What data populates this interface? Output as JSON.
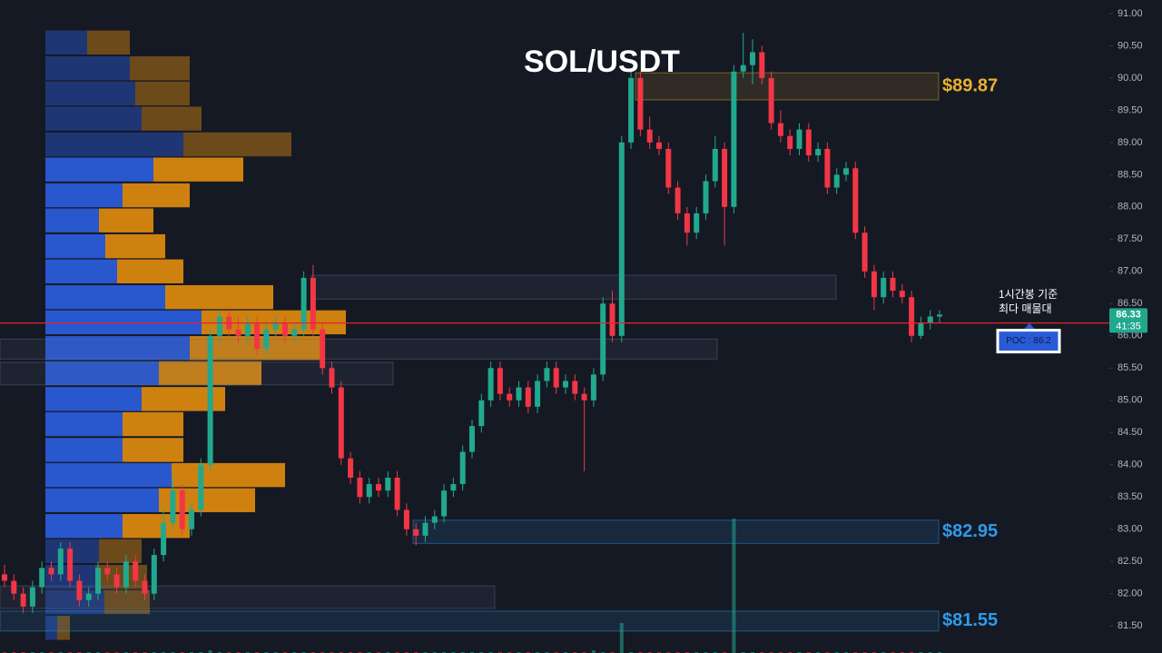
{
  "chart_data": {
    "type": "candlestick",
    "title": "SOL/USDT",
    "ylim": [
      81.08,
      91.21
    ],
    "yticks": [
      {
        "value": 91,
        "label": "91.00"
      },
      {
        "value": 90.5,
        "label": "90.50"
      },
      {
        "value": 90,
        "label": "90.00"
      },
      {
        "value": 89.5,
        "label": "89.50"
      },
      {
        "value": 89,
        "label": "89.00"
      },
      {
        "value": 88.5,
        "label": "88.50"
      },
      {
        "value": 88,
        "label": "88.00"
      },
      {
        "value": 87.5,
        "label": "87.50"
      },
      {
        "value": 87,
        "label": "87.00"
      },
      {
        "value": 86.5,
        "label": "86.50"
      },
      {
        "value": 86,
        "label": "86.00"
      },
      {
        "value": 85.5,
        "label": "85.50"
      },
      {
        "value": 85,
        "label": "85.00"
      },
      {
        "value": 84.5,
        "label": "84.50"
      },
      {
        "value": 84,
        "label": "84.00"
      },
      {
        "value": 83.5,
        "label": "83.50"
      },
      {
        "value": 83,
        "label": "83.00"
      },
      {
        "value": 82.5,
        "label": "82.50"
      },
      {
        "value": 82,
        "label": "82.00"
      },
      {
        "value": 81.5,
        "label": "81.50"
      }
    ],
    "up_color": "#22a88e",
    "down_color": "#f23645",
    "ohlc": [
      [
        82.3,
        82.45,
        82.1,
        82.2
      ],
      [
        82.2,
        82.3,
        81.9,
        82.0
      ],
      [
        82.0,
        82.1,
        81.7,
        81.8
      ],
      [
        81.8,
        82.2,
        81.7,
        82.1
      ],
      [
        82.1,
        82.5,
        82.0,
        82.4
      ],
      [
        82.4,
        82.5,
        82.2,
        82.3
      ],
      [
        82.3,
        82.8,
        82.2,
        82.7
      ],
      [
        82.7,
        82.8,
        82.1,
        82.2
      ],
      [
        82.2,
        82.3,
        81.8,
        81.9
      ],
      [
        81.9,
        82.1,
        81.8,
        82.0
      ],
      [
        82.0,
        82.5,
        81.9,
        82.4
      ],
      [
        82.4,
        82.5,
        82.2,
        82.3
      ],
      [
        82.3,
        82.4,
        82.0,
        82.1
      ],
      [
        82.1,
        82.6,
        82.0,
        82.5
      ],
      [
        82.5,
        82.6,
        82.1,
        82.2
      ],
      [
        82.2,
        82.3,
        81.9,
        82.0
      ],
      [
        82.0,
        82.7,
        81.9,
        82.6
      ],
      [
        82.6,
        83.3,
        82.5,
        83.1
      ],
      [
        83.1,
        83.8,
        83.0,
        83.6
      ],
      [
        83.6,
        83.7,
        82.9,
        83.0
      ],
      [
        83.0,
        83.4,
        82.9,
        83.3
      ],
      [
        83.3,
        84.1,
        83.2,
        84.0
      ],
      [
        84.0,
        86.1,
        83.9,
        86.0
      ],
      [
        86.0,
        86.4,
        85.9,
        86.3
      ],
      [
        86.3,
        86.4,
        86.0,
        86.1
      ],
      [
        86.1,
        86.3,
        85.9,
        86.0
      ],
      [
        86.0,
        86.3,
        85.9,
        86.2
      ],
      [
        86.2,
        86.3,
        85.7,
        85.8
      ],
      [
        85.8,
        86.2,
        85.7,
        86.1
      ],
      [
        86.1,
        86.3,
        86.0,
        86.2
      ],
      [
        86.2,
        86.3,
        85.9,
        86.0
      ],
      [
        86.0,
        86.2,
        85.9,
        86.1
      ],
      [
        86.1,
        87.0,
        86.0,
        86.9
      ],
      [
        86.9,
        87.1,
        86.0,
        86.1
      ],
      [
        86.1,
        86.2,
        85.4,
        85.5
      ],
      [
        85.5,
        85.6,
        85.1,
        85.2
      ],
      [
        85.2,
        85.3,
        84.0,
        84.1
      ],
      [
        84.1,
        84.2,
        83.7,
        83.8
      ],
      [
        83.8,
        83.9,
        83.4,
        83.5
      ],
      [
        83.5,
        83.8,
        83.4,
        83.7
      ],
      [
        83.7,
        83.8,
        83.5,
        83.6
      ],
      [
        83.6,
        83.9,
        83.5,
        83.8
      ],
      [
        83.8,
        83.9,
        83.2,
        83.3
      ],
      [
        83.3,
        83.4,
        82.9,
        83.0
      ],
      [
        83.0,
        83.1,
        82.75,
        82.9
      ],
      [
        82.9,
        83.2,
        82.8,
        83.1
      ],
      [
        83.1,
        83.3,
        83.0,
        83.2
      ],
      [
        83.2,
        83.7,
        83.1,
        83.6
      ],
      [
        83.6,
        83.8,
        83.5,
        83.7
      ],
      [
        83.7,
        84.3,
        83.6,
        84.2
      ],
      [
        84.2,
        84.7,
        84.1,
        84.6
      ],
      [
        84.6,
        85.1,
        84.5,
        85.0
      ],
      [
        85.0,
        85.6,
        84.9,
        85.5
      ],
      [
        85.5,
        85.6,
        85.0,
        85.1
      ],
      [
        85.1,
        85.2,
        84.9,
        85.0
      ],
      [
        85.0,
        85.3,
        84.9,
        85.2
      ],
      [
        85.2,
        85.3,
        84.8,
        84.9
      ],
      [
        84.9,
        85.4,
        84.8,
        85.3
      ],
      [
        85.3,
        85.6,
        85.2,
        85.5
      ],
      [
        85.5,
        85.6,
        85.1,
        85.2
      ],
      [
        85.2,
        85.4,
        85.1,
        85.3
      ],
      [
        85.3,
        85.4,
        85.0,
        85.1
      ],
      [
        85.1,
        85.2,
        83.9,
        85.0
      ],
      [
        85.0,
        85.5,
        84.9,
        85.4
      ],
      [
        85.4,
        86.6,
        85.3,
        86.5
      ],
      [
        86.5,
        86.7,
        85.9,
        86.0
      ],
      [
        86.0,
        89.1,
        85.9,
        89.0
      ],
      [
        89.0,
        90.1,
        88.9,
        90.0
      ],
      [
        90.0,
        90.1,
        89.1,
        89.2
      ],
      [
        89.2,
        89.4,
        88.9,
        89.0
      ],
      [
        89.0,
        89.1,
        88.8,
        88.9
      ],
      [
        88.9,
        89.0,
        88.2,
        88.3
      ],
      [
        88.3,
        88.4,
        87.8,
        87.9
      ],
      [
        87.9,
        88.0,
        87.4,
        87.6
      ],
      [
        87.6,
        88.0,
        87.5,
        87.9
      ],
      [
        87.9,
        88.5,
        87.8,
        88.4
      ],
      [
        88.4,
        89.1,
        88.3,
        88.9
      ],
      [
        88.9,
        89.0,
        87.4,
        88.0
      ],
      [
        88.0,
        90.2,
        87.9,
        90.1
      ],
      [
        90.1,
        90.7,
        90.0,
        90.2
      ],
      [
        90.2,
        90.6,
        89.9,
        90.4
      ],
      [
        90.4,
        90.5,
        89.9,
        90.0
      ],
      [
        90.0,
        90.1,
        89.2,
        89.3
      ],
      [
        89.3,
        89.5,
        89.0,
        89.1
      ],
      [
        89.1,
        89.2,
        88.8,
        88.9
      ],
      [
        88.9,
        89.3,
        88.8,
        89.2
      ],
      [
        89.2,
        89.3,
        88.7,
        88.8
      ],
      [
        88.8,
        89.0,
        88.7,
        88.9
      ],
      [
        88.9,
        89.0,
        88.2,
        88.3
      ],
      [
        88.3,
        88.6,
        88.2,
        88.5
      ],
      [
        88.5,
        88.7,
        88.4,
        88.6
      ],
      [
        88.6,
        88.7,
        87.5,
        87.6
      ],
      [
        87.6,
        87.7,
        86.9,
        87.0
      ],
      [
        87.0,
        87.1,
        86.4,
        86.6
      ],
      [
        86.6,
        87.0,
        86.5,
        86.9
      ],
      [
        86.9,
        87.0,
        86.6,
        86.7
      ],
      [
        86.7,
        86.8,
        86.5,
        86.6
      ],
      [
        86.6,
        86.7,
        85.9,
        86.0
      ],
      [
        86.0,
        86.3,
        85.95,
        86.2
      ],
      [
        86.2,
        86.4,
        86.1,
        86.3
      ],
      [
        86.3,
        86.4,
        86.2,
        86.33
      ]
    ],
    "volume": [
      1,
      1,
      1,
      1,
      1,
      1,
      1,
      1,
      1,
      1,
      1,
      1,
      1,
      1,
      1,
      1,
      1,
      1,
      1,
      1,
      1,
      1,
      3,
      1,
      1,
      1,
      1,
      1,
      1,
      1,
      1,
      1,
      1,
      1,
      1,
      1,
      1,
      1,
      1,
      1,
      1,
      1,
      1,
      1,
      1,
      1,
      1,
      1,
      1,
      1,
      1,
      1,
      1,
      1,
      1,
      1,
      1,
      1,
      1,
      1,
      1,
      1,
      1,
      3,
      1,
      1,
      33,
      1,
      1,
      1,
      1,
      1,
      1,
      1,
      1,
      1,
      1,
      1,
      148,
      1,
      1,
      1,
      1,
      1,
      1,
      1,
      1,
      1,
      1,
      1,
      1,
      1,
      1,
      1,
      1,
      1,
      1,
      1,
      1,
      1,
      1
    ],
    "countdown": "41:35",
    "volume_profile": {
      "prices": [
        90.55,
        90.15,
        89.76,
        89.37,
        88.97,
        88.58,
        88.18,
        87.79,
        87.39,
        87.0,
        86.6,
        86.21,
        85.81,
        85.42,
        85.02,
        84.63,
        84.23,
        83.84,
        83.45,
        83.05,
        82.66,
        82.26,
        81.87,
        81.47
      ],
      "buy": [
        46,
        93,
        99,
        106,
        152,
        119,
        85,
        59,
        66,
        79,
        132,
        172,
        159,
        125,
        106,
        85,
        85,
        139,
        125,
        85,
        59,
        55,
        65,
        13
      ],
      "sell": [
        47,
        66,
        60,
        66,
        119,
        99,
        74,
        60,
        66,
        73,
        119,
        159,
        145,
        113,
        92,
        67,
        67,
        125,
        106,
        74,
        47,
        57,
        50,
        14
      ],
      "buy_color": "#2a5bd7",
      "sell_color": "#d9870f",
      "value_area": [
        82.9,
        88.7
      ]
    },
    "poc": {
      "price": 86.2,
      "label": "POC : 86.2",
      "color": "#e0262f"
    },
    "annotation": [
      "1시간봉 기준",
      "최다 매물대"
    ],
    "zones": [
      {
        "range": [
          89.66,
          90.08
        ],
        "label": "$89.87",
        "color": "#e9b12d"
      },
      {
        "range": [
          86.57,
          86.94
        ],
        "color": "#5a6f8a"
      },
      {
        "range": [
          85.64,
          85.95
        ],
        "color": "#5a6f8a"
      },
      {
        "range": [
          85.24,
          85.59
        ],
        "color": "#5a6f8a"
      },
      {
        "range": [
          82.78,
          83.14
        ],
        "label": "$82.95",
        "color": "#2e9be8"
      },
      {
        "range": [
          81.77,
          82.12
        ],
        "color": "#5a6f8a"
      },
      {
        "range": [
          81.42,
          81.73
        ],
        "label": "$81.55",
        "color": "#2e9be8"
      }
    ]
  }
}
